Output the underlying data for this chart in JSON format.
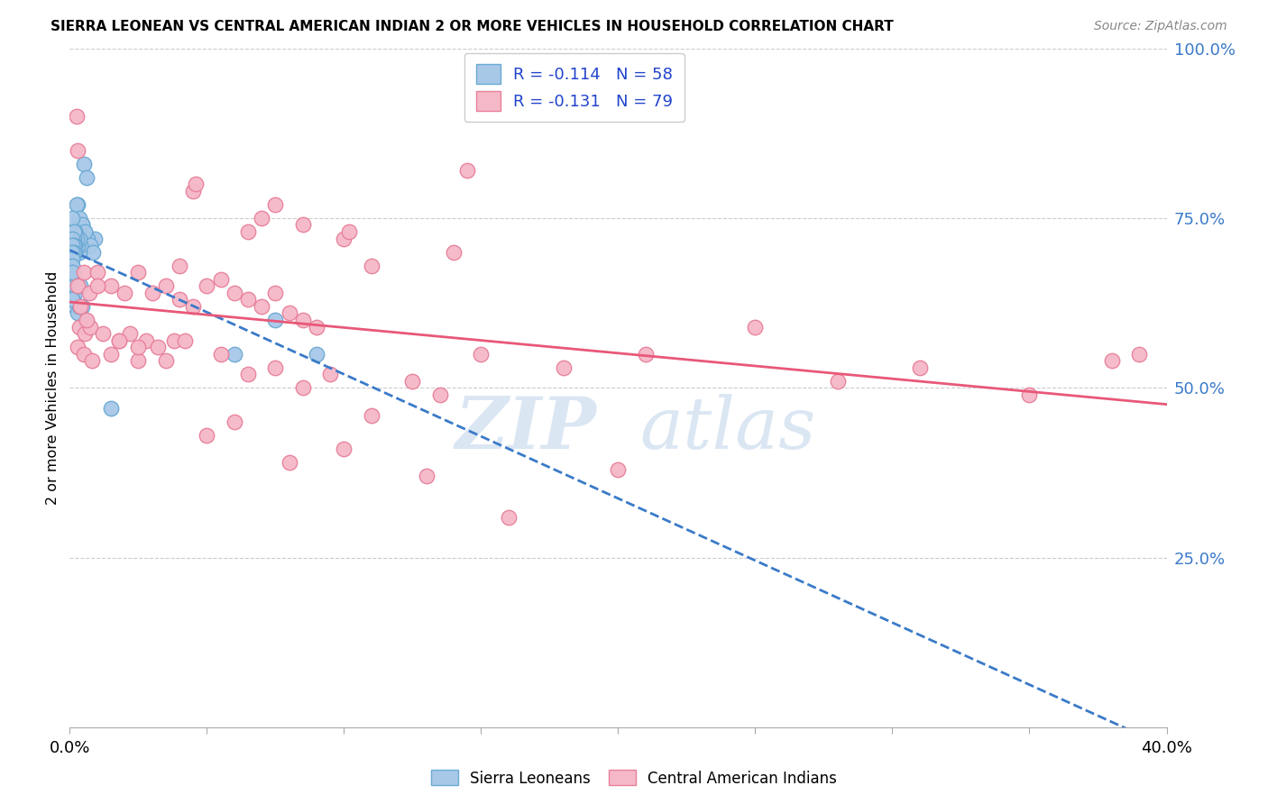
{
  "title": "SIERRA LEONEAN VS CENTRAL AMERICAN INDIAN 2 OR MORE VEHICLES IN HOUSEHOLD CORRELATION CHART",
  "source": "Source: ZipAtlas.com",
  "ylabel": "2 or more Vehicles in Household",
  "xlim": [
    0.0,
    40.0
  ],
  "ylim": [
    0.0,
    100.0
  ],
  "sierra_color": "#a8c8e8",
  "central_color": "#f5b8c8",
  "sierra_edge": "#6aaad4",
  "central_edge": "#e8809a",
  "trendline_sierra_color": "#3a7ac8",
  "trendline_central_color": "#e85878",
  "background_color": "#ffffff",
  "grid_color": "#cccccc",
  "sierra_R": -0.114,
  "central_R": -0.131,
  "sierra_N": 58,
  "central_N": 79,
  "sierra_x": [
    0.5,
    0.6,
    0.9,
    0.3,
    0.35,
    0.45,
    0.55,
    0.65,
    0.75,
    0.85,
    0.25,
    0.35,
    0.45,
    0.55,
    0.25,
    0.3,
    0.35,
    0.4,
    0.2,
    0.25,
    0.3,
    0.35,
    0.2,
    0.25,
    0.15,
    0.2,
    0.15,
    0.2,
    0.1,
    0.15,
    0.1,
    0.15,
    0.1,
    0.1,
    0.1,
    0.15,
    0.2,
    0.45,
    0.55,
    0.1,
    0.15,
    0.2,
    0.3,
    0.2,
    0.1,
    0.35,
    0.15,
    0.2,
    0.1,
    0.1,
    0.1,
    0.1,
    6.0,
    7.5,
    9.0,
    0.1,
    0.4,
    1.5
  ],
  "sierra_y": [
    83,
    81,
    72,
    77,
    74,
    74,
    73,
    72,
    71,
    70,
    77,
    75,
    74,
    73,
    72,
    71,
    70,
    71,
    73,
    72,
    71,
    72,
    73,
    72,
    71,
    70,
    72,
    71,
    75,
    73,
    72,
    71,
    70,
    69,
    71,
    70,
    62,
    62,
    60,
    68,
    67,
    66,
    61,
    64,
    63,
    62,
    67,
    65,
    70,
    69,
    68,
    67,
    55,
    60,
    55,
    63,
    65,
    47
  ],
  "central_x": [
    0.25,
    0.3,
    4.5,
    4.6,
    7.5,
    7.0,
    8.5,
    10.0,
    10.2,
    6.5,
    11.0,
    14.0,
    0.3,
    0.5,
    0.7,
    1.0,
    1.5,
    2.0,
    2.5,
    3.0,
    3.5,
    4.0,
    4.5,
    5.0,
    5.5,
    6.0,
    6.5,
    7.0,
    7.5,
    8.0,
    8.5,
    9.0,
    0.35,
    0.55,
    0.75,
    1.2,
    1.8,
    2.2,
    2.8,
    3.2,
    3.8,
    4.2,
    0.3,
    0.5,
    0.8,
    1.5,
    2.5,
    3.5,
    5.5,
    6.5,
    7.5,
    8.5,
    9.5,
    11.0,
    12.5,
    13.5,
    15.0,
    18.0,
    21.0,
    25.0,
    28.0,
    31.0,
    35.0,
    38.0,
    0.4,
    0.6,
    1.0,
    1.8,
    2.5,
    4.0,
    5.0,
    6.0,
    8.0,
    10.0,
    13.0,
    16.0,
    20.0,
    39.0,
    14.5
  ],
  "central_y": [
    90,
    85,
    79,
    80,
    77,
    75,
    74,
    72,
    73,
    73,
    68,
    70,
    65,
    67,
    64,
    67,
    65,
    64,
    67,
    64,
    65,
    63,
    62,
    65,
    66,
    64,
    63,
    62,
    64,
    61,
    60,
    59,
    59,
    58,
    59,
    58,
    57,
    58,
    57,
    56,
    57,
    57,
    56,
    55,
    54,
    55,
    54,
    54,
    55,
    52,
    53,
    50,
    52,
    46,
    51,
    49,
    55,
    53,
    55,
    59,
    51,
    53,
    49,
    54,
    62,
    60,
    65,
    57,
    56,
    68,
    43,
    45,
    39,
    41,
    37,
    31,
    38,
    55,
    82
  ]
}
